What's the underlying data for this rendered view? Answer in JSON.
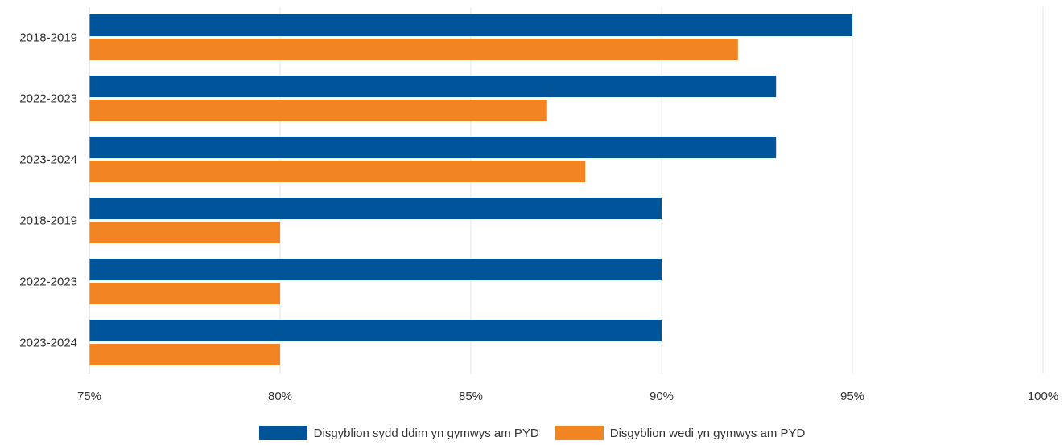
{
  "chart_data": {
    "type": "bar",
    "orientation": "horizontal",
    "categories": [
      "2018-2019",
      "2022-2023",
      "2023-2024",
      "2018-2019",
      "2022-2023",
      "2023-2024"
    ],
    "series": [
      {
        "name": "Disgyblion sydd ddim yn gymwys am PYD",
        "color": "#00549a",
        "values": [
          95,
          93,
          93,
          90,
          90,
          90
        ]
      },
      {
        "name": "Disgyblion wedi yn gymwys am PYD",
        "color": "#f28521",
        "values": [
          92,
          87,
          88,
          80,
          80,
          80
        ]
      }
    ],
    "xlim": [
      75,
      100
    ],
    "xticks": [
      75,
      80,
      85,
      90,
      95,
      100
    ],
    "xtick_labels": [
      "75%",
      "80%",
      "85%",
      "90%",
      "95%",
      "100%"
    ],
    "grid": true,
    "legend_position": "bottom"
  }
}
